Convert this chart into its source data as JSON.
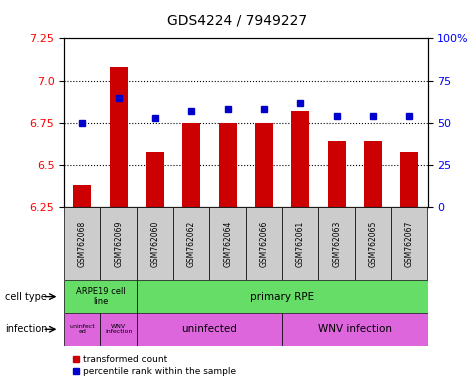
{
  "title": "GDS4224 / 7949227",
  "samples": [
    "GSM762068",
    "GSM762069",
    "GSM762060",
    "GSM762062",
    "GSM762064",
    "GSM762066",
    "GSM762061",
    "GSM762063",
    "GSM762065",
    "GSM762067"
  ],
  "transformed_counts": [
    6.38,
    7.08,
    6.58,
    6.75,
    6.75,
    6.75,
    6.82,
    6.64,
    6.64,
    6.58
  ],
  "percentile_ranks": [
    50,
    65,
    53,
    57,
    58,
    58,
    62,
    54,
    54,
    54
  ],
  "ylim_left": [
    6.25,
    7.25
  ],
  "ylim_right": [
    0,
    100
  ],
  "yticks_left": [
    6.25,
    6.5,
    6.75,
    7.0,
    7.25
  ],
  "yticks_right": [
    0,
    25,
    50,
    75,
    100
  ],
  "ytick_labels_right": [
    "0",
    "25",
    "50",
    "75",
    "100%"
  ],
  "bar_color": "#cc0000",
  "dot_color": "#0000cc",
  "bar_width": 0.5,
  "bar_bottom": 6.25,
  "cell_type_bg": "#66dd66",
  "infection_bg": "#dd66dd",
  "sample_bg": "#cccccc",
  "grid_color": "black",
  "legend_red_label": "transformed count",
  "legend_blue_label": "percentile rank within the sample"
}
